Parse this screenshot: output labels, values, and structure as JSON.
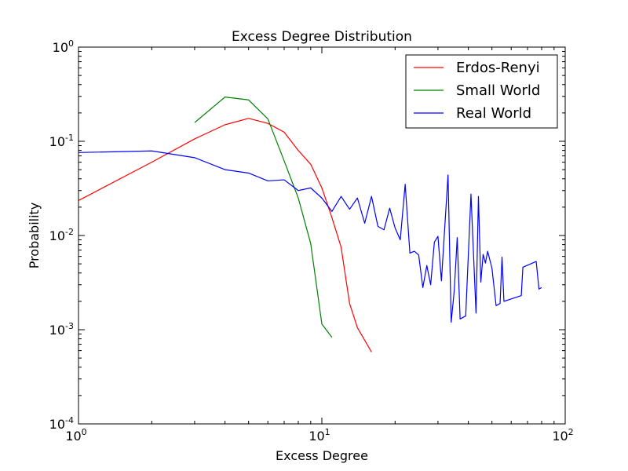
{
  "chart_data": {
    "type": "line",
    "title": "Excess Degree Distribution",
    "xlabel": "Excess Degree",
    "ylabel": "Probability",
    "xscale": "log",
    "yscale": "log",
    "xlim": [
      1,
      100
    ],
    "ylim": [
      0.0001,
      1
    ],
    "grid": false,
    "legend_position": "top-right",
    "x_ticks": [
      {
        "value": 1,
        "base": "10",
        "exp": "0"
      },
      {
        "value": 10,
        "base": "10",
        "exp": "1"
      },
      {
        "value": 100,
        "base": "10",
        "exp": "2"
      }
    ],
    "y_ticks": [
      {
        "value": 1,
        "base": "10",
        "exp": "0"
      },
      {
        "value": 0.1,
        "base": "10",
        "exp": "-1"
      },
      {
        "value": 0.01,
        "base": "10",
        "exp": "-2"
      },
      {
        "value": 0.001,
        "base": "10",
        "exp": "-3"
      },
      {
        "value": 0.0001,
        "base": "10",
        "exp": "-4"
      }
    ],
    "series": [
      {
        "name": "Erdos-Renyi",
        "color": "#ff0000",
        "points": [
          [
            1,
            0.0235
          ],
          [
            2,
            0.06
          ],
          [
            3,
            0.106
          ],
          [
            4,
            0.15
          ],
          [
            5,
            0.175
          ],
          [
            6,
            0.155
          ],
          [
            7,
            0.125
          ],
          [
            8,
            0.08
          ],
          [
            9,
            0.057
          ],
          [
            10,
            0.032
          ],
          [
            11,
            0.0155
          ],
          [
            12,
            0.0075
          ],
          [
            13,
            0.0019
          ],
          [
            14,
            0.00105
          ],
          [
            16,
            0.00058
          ]
        ]
      },
      {
        "name": "Small World",
        "color": "#008000",
        "points": [
          [
            3,
            0.158
          ],
          [
            4,
            0.295
          ],
          [
            5,
            0.275
          ],
          [
            6,
            0.173
          ],
          [
            7,
            0.062
          ],
          [
            8,
            0.025
          ],
          [
            9,
            0.0082
          ],
          [
            10,
            0.00115
          ],
          [
            11,
            0.00083
          ]
        ]
      },
      {
        "name": "Real World",
        "color": "#0000ff",
        "points": [
          [
            1,
            0.076
          ],
          [
            2,
            0.079
          ],
          [
            3,
            0.067
          ],
          [
            4,
            0.05
          ],
          [
            5,
            0.046
          ],
          [
            6,
            0.038
          ],
          [
            7,
            0.039
          ],
          [
            8,
            0.03
          ],
          [
            9,
            0.032
          ],
          [
            10,
            0.025
          ],
          [
            11,
            0.018
          ],
          [
            12,
            0.026
          ],
          [
            13,
            0.019
          ],
          [
            14,
            0.025
          ],
          [
            15,
            0.0135
          ],
          [
            16,
            0.026
          ],
          [
            17,
            0.0125
          ],
          [
            18,
            0.0115
          ],
          [
            19,
            0.0195
          ],
          [
            20,
            0.012
          ],
          [
            21,
            0.009
          ],
          [
            22,
            0.035
          ],
          [
            23,
            0.0065
          ],
          [
            24,
            0.0068
          ],
          [
            25,
            0.0062
          ],
          [
            26,
            0.0028
          ],
          [
            27,
            0.0048
          ],
          [
            28,
            0.003
          ],
          [
            29,
            0.0085
          ],
          [
            30,
            0.0098
          ],
          [
            31,
            0.0033
          ],
          [
            33,
            0.044
          ],
          [
            34,
            0.0012
          ],
          [
            35,
            0.0026
          ],
          [
            36,
            0.0095
          ],
          [
            37,
            0.0013
          ],
          [
            39,
            0.0014
          ],
          [
            41,
            0.0275
          ],
          [
            43,
            0.0015
          ],
          [
            44,
            0.026
          ],
          [
            45,
            0.0032
          ],
          [
            46,
            0.0063
          ],
          [
            47,
            0.0051
          ],
          [
            48,
            0.0068
          ],
          [
            50,
            0.0045
          ],
          [
            52,
            0.0018
          ],
          [
            54,
            0.0019
          ],
          [
            55,
            0.0059
          ],
          [
            56,
            0.002
          ],
          [
            66,
            0.0023
          ],
          [
            67,
            0.0046
          ],
          [
            76,
            0.0053
          ],
          [
            78,
            0.0027
          ],
          [
            80,
            0.0028
          ]
        ]
      }
    ]
  }
}
